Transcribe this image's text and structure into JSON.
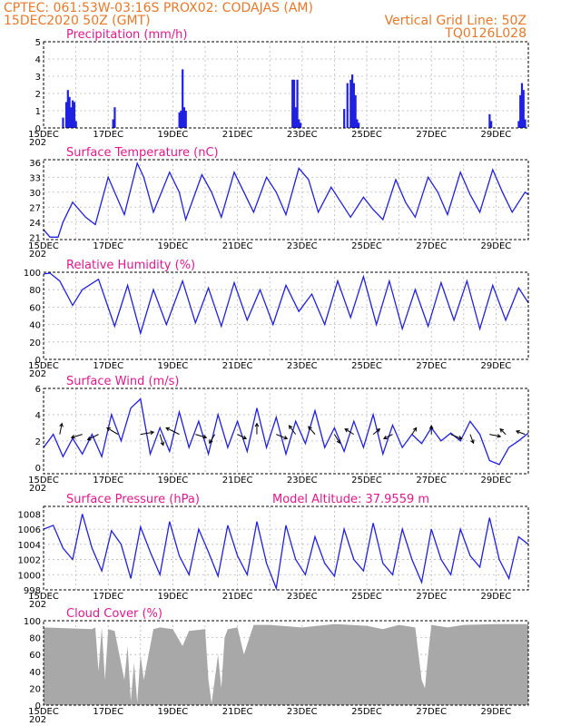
{
  "header": {
    "left1": "CPTEC:   061:53W-03:16S   PROX02: CODAJAS (AM)",
    "left2": "15DEC2020 50Z (GMT)",
    "right1": "Vertical Grid Line: 50Z",
    "right2": "TQ0126L028"
  },
  "x_ticks": [
    "15DEC",
    "17DEC",
    "19DEC",
    "21DEC",
    "23DEC",
    "25DEC",
    "27DEC",
    "29DEC"
  ],
  "year_stub": "202",
  "colors": {
    "header": "#e8782a",
    "title": "#e0188c",
    "series": "#2020e0",
    "cloud": "#a8a8a8"
  },
  "chart_data": [
    {
      "type": "bar",
      "title": "Precipitation (mm/h)",
      "ylim": [
        0,
        5
      ],
      "y_ticks": [
        "5",
        "4",
        "3",
        "2",
        "1",
        "0"
      ],
      "x_unit": "day offset from 15DEC",
      "x": [
        0.6,
        0.7,
        0.75,
        0.8,
        0.85,
        0.9,
        0.95,
        1.0,
        2.15,
        2.2,
        4.2,
        4.25,
        4.3,
        4.35,
        4.4,
        7.7,
        7.75,
        7.8,
        7.85,
        7.9,
        7.95,
        9.3,
        9.4,
        9.5,
        9.55,
        9.6,
        9.65,
        9.7,
        9.75,
        13.8,
        13.85,
        14.7,
        14.75,
        14.8,
        14.85,
        14.9
      ],
      "values": [
        0.6,
        1.5,
        2.2,
        1.8,
        1.2,
        1.6,
        1.5,
        0.4,
        0.5,
        1.2,
        0.9,
        1.0,
        3.4,
        1.2,
        1.0,
        2.8,
        2.8,
        1.2,
        2.8,
        0.5,
        0.3,
        1.1,
        2.6,
        2.8,
        3.1,
        2.6,
        1.9,
        0.5,
        0.3,
        0.8,
        0.4,
        0.4,
        1.9,
        2.6,
        2.2,
        0.5
      ]
    },
    {
      "type": "line",
      "title": "Surface Temperature (nC)",
      "ylim": [
        20.5,
        36.5
      ],
      "y_ticks": [
        "36",
        "33",
        "30",
        "27",
        "24",
        "21"
      ],
      "x": [
        0,
        0.2,
        0.45,
        0.6,
        0.9,
        1.3,
        1.6,
        2.0,
        2.2,
        2.5,
        2.9,
        3.1,
        3.4,
        3.9,
        4.2,
        4.4,
        4.9,
        5.2,
        5.5,
        5.9,
        6.2,
        6.5,
        6.9,
        7.2,
        7.5,
        7.9,
        8.2,
        8.5,
        8.9,
        9.2,
        9.5,
        9.9,
        10.2,
        10.5,
        10.9,
        11.2,
        11.5,
        11.9,
        12.2,
        12.5,
        12.9,
        13.2,
        13.5,
        13.9,
        14.2,
        14.5,
        14.9,
        15.0
      ],
      "values": [
        22.5,
        21.0,
        21.0,
        24.0,
        28.0,
        25.0,
        23.5,
        33.0,
        30.0,
        25.5,
        35.8,
        33.0,
        26.0,
        34.0,
        30.0,
        24.5,
        33.5,
        30.0,
        25.0,
        34.0,
        30.0,
        26.0,
        33.0,
        30.0,
        25.5,
        34.8,
        32.5,
        26.0,
        31.0,
        28.0,
        25.0,
        29.0,
        26.5,
        24.5,
        32.5,
        28.0,
        25.0,
        33.0,
        30.0,
        25.5,
        34.0,
        29.5,
        26.0,
        34.5,
        30.0,
        26.0,
        30.0,
        29.5
      ]
    },
    {
      "type": "line",
      "title": "Relative Humidity (%)",
      "ylim": [
        0,
        100
      ],
      "y_ticks": [
        "100",
        "80",
        "60",
        "40",
        "20",
        "0"
      ],
      "x": [
        0,
        0.2,
        0.5,
        0.9,
        1.2,
        1.7,
        2.2,
        2.6,
        3.0,
        3.4,
        3.8,
        4.3,
        4.7,
        5.1,
        5.5,
        5.9,
        6.3,
        6.7,
        7.1,
        7.5,
        7.9,
        8.3,
        8.7,
        9.1,
        9.5,
        9.9,
        10.3,
        10.7,
        11.1,
        11.5,
        11.9,
        12.3,
        12.7,
        13.1,
        13.5,
        13.9,
        14.3,
        14.7,
        15.0
      ],
      "values": [
        98,
        99,
        90,
        62,
        80,
        92,
        38,
        85,
        30,
        80,
        40,
        90,
        42,
        82,
        38,
        88,
        45,
        80,
        40,
        85,
        55,
        75,
        40,
        90,
        48,
        95,
        40,
        90,
        35,
        80,
        38,
        88,
        45,
        90,
        35,
        85,
        45,
        82,
        65
      ]
    },
    {
      "type": "line",
      "title": "Surface Wind (m/s)",
      "ylim": [
        -0.5,
        6
      ],
      "y_ticks": [
        "6",
        "4",
        "2",
        "0"
      ],
      "x": [
        0,
        0.3,
        0.6,
        0.9,
        1.2,
        1.5,
        1.8,
        2.1,
        2.4,
        2.7,
        3.0,
        3.3,
        3.6,
        3.9,
        4.2,
        4.5,
        4.8,
        5.1,
        5.4,
        5.7,
        6.0,
        6.3,
        6.6,
        6.9,
        7.2,
        7.5,
        7.8,
        8.1,
        8.4,
        8.7,
        9.0,
        9.3,
        9.6,
        9.9,
        10.2,
        10.5,
        10.8,
        11.1,
        11.4,
        11.7,
        12.0,
        12.3,
        12.6,
        12.9,
        13.2,
        13.5,
        13.8,
        14.1,
        14.4,
        14.7,
        15.0
      ],
      "values": [
        1.5,
        2.5,
        0.8,
        2.2,
        1.0,
        2.5,
        0.8,
        4.0,
        2.0,
        4.5,
        5.2,
        1.0,
        3.0,
        1.2,
        4.2,
        1.5,
        3.5,
        1.0,
        4.0,
        1.5,
        3.5,
        1.2,
        4.5,
        1.5,
        3.8,
        1.0,
        3.5,
        1.8,
        4.3,
        1.5,
        3.0,
        1.2,
        3.5,
        1.5,
        4.0,
        1.0,
        3.2,
        1.5,
        2.5,
        1.8,
        3.0,
        2.0,
        2.6,
        2.0,
        3.5,
        2.5,
        0.5,
        0.2,
        1.5,
        2.0,
        2.6
      ],
      "vectors": {
        "x": [
          0.5,
          1.2,
          1.7,
          2.3,
          3.0,
          3.6,
          4.2,
          4.7,
          5.3,
          6.0,
          6.6,
          7.2,
          7.8,
          8.4,
          9.0,
          9.6,
          10.2,
          10.8,
          11.4,
          12.0,
          12.6,
          13.2,
          13.8,
          14.3,
          14.9
        ],
        "u": [
          0.2,
          -1.0,
          -1.0,
          -1.0,
          1.2,
          0.3,
          -1.2,
          1.0,
          -0.5,
          0.8,
          0.0,
          1.0,
          -0.6,
          -0.6,
          0.5,
          -0.8,
          0.6,
          -0.8,
          0.4,
          0.0,
          1.0,
          0.3,
          1.0,
          -0.5,
          -0.8
        ],
        "v": [
          1.0,
          -0.3,
          -0.5,
          0.6,
          0.2,
          -1.0,
          0.6,
          -0.3,
          -0.8,
          -0.4,
          1.0,
          -0.4,
          0.8,
          0.7,
          -0.8,
          0.5,
          0.5,
          -0.4,
          0.6,
          0.8,
          -0.4,
          -0.8,
          -0.2,
          0.5,
          0.3
        ]
      }
    },
    {
      "type": "line",
      "title": "Surface Pressure (hPa)",
      "annotation": "Model Altitude: 37.9559  m",
      "ylim": [
        998,
        1009
      ],
      "y_ticks": [
        "1008",
        "1006",
        "1004",
        "1002",
        "1000",
        "998"
      ],
      "x": [
        0,
        0.3,
        0.6,
        0.9,
        1.2,
        1.5,
        1.8,
        2.1,
        2.4,
        2.7,
        3.0,
        3.3,
        3.6,
        3.9,
        4.2,
        4.5,
        4.8,
        5.1,
        5.4,
        5.7,
        6.0,
        6.3,
        6.6,
        6.9,
        7.2,
        7.5,
        7.8,
        8.1,
        8.4,
        8.7,
        9.0,
        9.3,
        9.6,
        9.9,
        10.2,
        10.5,
        10.8,
        11.1,
        11.4,
        11.7,
        12.0,
        12.3,
        12.6,
        12.9,
        13.2,
        13.5,
        13.8,
        14.1,
        14.4,
        14.7,
        15.0
      ],
      "values": [
        1006.0,
        1006.5,
        1003.5,
        1002.0,
        1008.0,
        1003.5,
        1000.5,
        1005.8,
        1004.0,
        999.5,
        1006.3,
        1003.0,
        1000.0,
        1007.0,
        1002.5,
        1000.0,
        1006.0,
        1003.0,
        999.8,
        1006.5,
        1002.5,
        1000.0,
        1007.0,
        1001.5,
        998.2,
        1006.5,
        1002.0,
        1000.0,
        1005.0,
        1001.5,
        999.8,
        1006.0,
        1002.0,
        1000.5,
        1006.8,
        1001.5,
        1000.0,
        1006.0,
        1002.0,
        999.0,
        1006.0,
        1002.0,
        1000.0,
        1006.0,
        1002.5,
        1001.0,
        1007.5,
        1002.0,
        999.5,
        1005.0,
        1004.0
      ]
    },
    {
      "type": "area",
      "title": "Cloud Cover (%)",
      "ylim": [
        0,
        100
      ],
      "y_ticks": [
        "100",
        "80",
        "60",
        "40",
        "20",
        "0"
      ],
      "x": [
        0,
        1.5,
        1.6,
        1.7,
        1.8,
        1.9,
        2.0,
        2.2,
        2.5,
        2.6,
        2.7,
        2.8,
        2.9,
        3.0,
        3.1,
        3.4,
        3.6,
        4.0,
        4.3,
        4.5,
        5.0,
        5.1,
        5.2,
        5.4,
        5.5,
        5.6,
        5.7,
        6.0,
        6.2,
        6.5,
        7.0,
        8.0,
        9.0,
        10.0,
        10.5,
        11.0,
        11.5,
        11.7,
        11.8,
        11.9,
        12.0,
        12.5,
        13.0,
        14.0,
        14.5,
        15.0
      ],
      "values": [
        92,
        90,
        92,
        40,
        92,
        30,
        90,
        88,
        30,
        70,
        5,
        50,
        3,
        60,
        30,
        90,
        92,
        90,
        70,
        88,
        90,
        30,
        2,
        60,
        20,
        80,
        90,
        92,
        60,
        95,
        95,
        92,
        96,
        94,
        90,
        95,
        92,
        30,
        20,
        60,
        95,
        92,
        95,
        96,
        96,
        96
      ]
    }
  ]
}
